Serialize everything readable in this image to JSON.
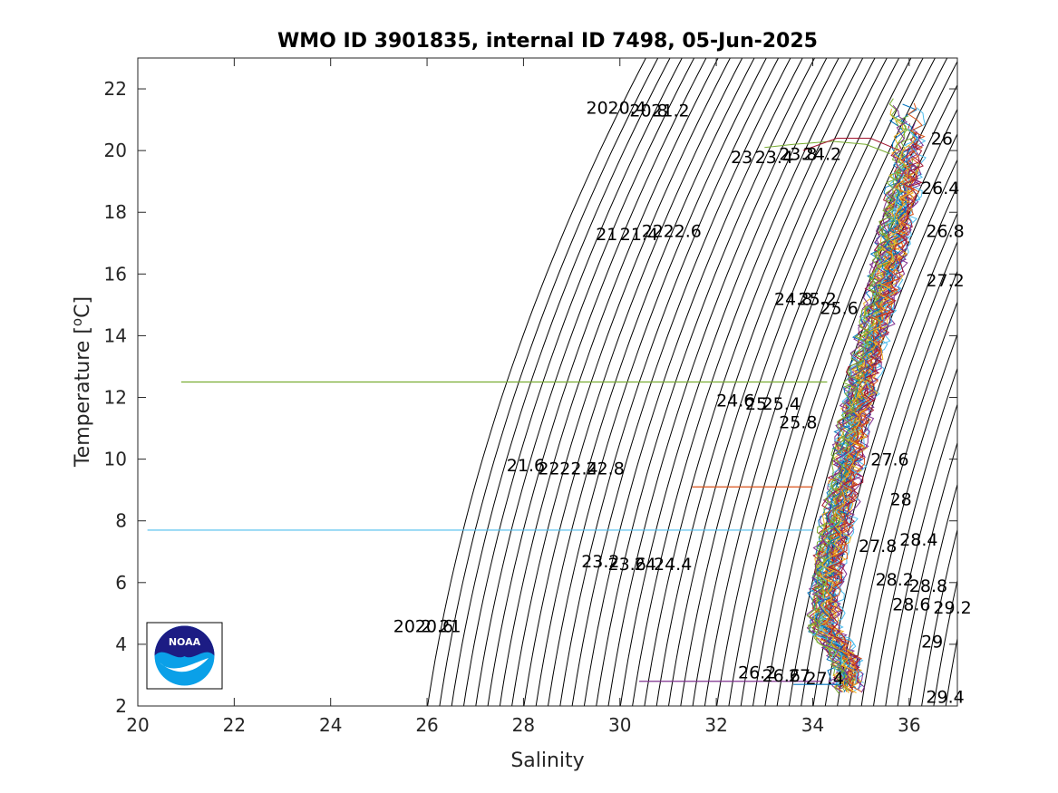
{
  "chart_data": {
    "type": "line",
    "title": "WMO ID 3901835, internal ID 7498, 05-Jun-2025",
    "xlabel": "Salinity",
    "ylabel_main": "Temperature [",
    "ylabel_sup": "o",
    "ylabel_tail": "C]",
    "xlim": [
      20,
      37
    ],
    "ylim": [
      2,
      23
    ],
    "xticks": [
      20,
      22,
      24,
      26,
      28,
      30,
      32,
      34,
      36
    ],
    "yticks": [
      2,
      4,
      6,
      8,
      10,
      12,
      14,
      16,
      18,
      20,
      22
    ],
    "grid": false,
    "legend": "none",
    "density_contours": {
      "sigma_min": 20.0,
      "sigma_max": 29.4,
      "sigma_step": 0.2,
      "color": "#000000"
    },
    "contour_labels": [
      {
        "text": "20",
        "x": 29.3,
        "y": 21.2
      },
      {
        "text": "20.4",
        "x": 29.75,
        "y": 21.2
      },
      {
        "text": "20.8",
        "x": 30.2,
        "y": 21.1
      },
      {
        "text": "21.2",
        "x": 30.65,
        "y": 21.1
      },
      {
        "text": "23",
        "x": 32.3,
        "y": 19.6
      },
      {
        "text": "23.4",
        "x": 32.8,
        "y": 19.6
      },
      {
        "text": "23.8",
        "x": 33.3,
        "y": 19.7
      },
      {
        "text": "24.2",
        "x": 33.8,
        "y": 19.7
      },
      {
        "text": "26",
        "x": 36.45,
        "y": 20.2
      },
      {
        "text": "21",
        "x": 29.5,
        "y": 17.1
      },
      {
        "text": "21.4",
        "x": 30.0,
        "y": 17.1
      },
      {
        "text": "22",
        "x": 30.45,
        "y": 17.2
      },
      {
        "text": "22.6",
        "x": 30.9,
        "y": 17.2
      },
      {
        "text": "26.4",
        "x": 36.25,
        "y": 18.6
      },
      {
        "text": "26.8",
        "x": 36.35,
        "y": 17.2
      },
      {
        "text": "24.8",
        "x": 33.2,
        "y": 15.0
      },
      {
        "text": "25.2",
        "x": 33.7,
        "y": 15.0
      },
      {
        "text": "25.6",
        "x": 34.15,
        "y": 14.7
      },
      {
        "text": "27.2",
        "x": 36.35,
        "y": 15.6
      },
      {
        "text": "24.6",
        "x": 32.0,
        "y": 11.7
      },
      {
        "text": "25",
        "x": 32.6,
        "y": 11.6
      },
      {
        "text": "25.4",
        "x": 32.95,
        "y": 11.6
      },
      {
        "text": "25.8",
        "x": 33.3,
        "y": 11.0
      },
      {
        "text": "27.6",
        "x": 35.2,
        "y": 9.8
      },
      {
        "text": "21.6",
        "x": 27.65,
        "y": 9.6
      },
      {
        "text": "22",
        "x": 28.3,
        "y": 9.5
      },
      {
        "text": "22.4",
        "x": 28.75,
        "y": 9.5
      },
      {
        "text": "22.8",
        "x": 29.3,
        "y": 9.5
      },
      {
        "text": "28",
        "x": 35.6,
        "y": 8.5
      },
      {
        "text": "27.8",
        "x": 34.95,
        "y": 7.0
      },
      {
        "text": "28.4",
        "x": 35.8,
        "y": 7.2
      },
      {
        "text": "23.2",
        "x": 29.2,
        "y": 6.5
      },
      {
        "text": "23.6",
        "x": 29.75,
        "y": 6.4
      },
      {
        "text": "24",
        "x": 30.3,
        "y": 6.4
      },
      {
        "text": "24.4",
        "x": 30.7,
        "y": 6.4
      },
      {
        "text": "28.2",
        "x": 35.3,
        "y": 5.9
      },
      {
        "text": "28.8",
        "x": 36.0,
        "y": 5.7
      },
      {
        "text": "28.6",
        "x": 35.65,
        "y": 5.1
      },
      {
        "text": "29.2",
        "x": 36.5,
        "y": 5.0
      },
      {
        "text": "20.2",
        "x": 25.3,
        "y": 4.4
      },
      {
        "text": "20.6",
        "x": 25.75,
        "y": 4.4
      },
      {
        "text": "21",
        "x": 26.25,
        "y": 4.4
      },
      {
        "text": "29",
        "x": 36.25,
        "y": 3.9
      },
      {
        "text": "26.2",
        "x": 32.45,
        "y": 2.9
      },
      {
        "text": "26.6",
        "x": 32.95,
        "y": 2.8
      },
      {
        "text": "27",
        "x": 33.5,
        "y": 2.8
      },
      {
        "text": "27.4",
        "x": 33.85,
        "y": 2.7
      },
      {
        "text": "29.4",
        "x": 36.35,
        "y": 2.1
      }
    ],
    "horizontal_segments": [
      {
        "x0": 20.9,
        "x1": 34.3,
        "y": 12.5,
        "color": "#77ac30"
      },
      {
        "x0": 20.2,
        "x1": 34.0,
        "y": 7.7,
        "color": "#4dbeee"
      },
      {
        "x0": 31.5,
        "x1": 34.0,
        "y": 9.1,
        "color": "#d95319"
      },
      {
        "x0": 30.4,
        "x1": 34.2,
        "y": 2.8,
        "color": "#7e2f8e"
      },
      {
        "x0": 33.6,
        "x1": 34.6,
        "y": 2.7,
        "color": "#0072bd"
      }
    ],
    "arc_segments": [
      {
        "points": [
          [
            33.0,
            20.1
          ],
          [
            33.6,
            20.2
          ],
          [
            34.4,
            20.3
          ],
          [
            35.1,
            20.2
          ],
          [
            35.6,
            19.9
          ]
        ],
        "color": "#77ac30"
      },
      {
        "points": [
          [
            33.8,
            20.0
          ],
          [
            34.5,
            20.4
          ],
          [
            35.2,
            20.4
          ],
          [
            35.8,
            20.0
          ]
        ],
        "color": "#a2142f"
      }
    ],
    "profile_colors": [
      "#0072bd",
      "#d95319",
      "#edb120",
      "#7e2f8e",
      "#77ac30",
      "#4dbeee",
      "#a2142f"
    ],
    "profile_count": 40,
    "profile_envelope": [
      {
        "t": 2.3,
        "s": 34.75
      },
      {
        "t": 3.5,
        "s": 34.7
      },
      {
        "t": 4.5,
        "s": 34.25
      },
      {
        "t": 6.0,
        "s": 34.3
      },
      {
        "t": 7.5,
        "s": 34.45
      },
      {
        "t": 9.0,
        "s": 34.65
      },
      {
        "t": 11.0,
        "s": 34.85
      },
      {
        "t": 13.0,
        "s": 35.1
      },
      {
        "t": 15.0,
        "s": 35.4
      },
      {
        "t": 17.0,
        "s": 35.65
      },
      {
        "t": 18.5,
        "s": 35.85
      },
      {
        "t": 19.5,
        "s": 35.95
      },
      {
        "t": 20.5,
        "s": 36.0
      },
      {
        "t": 21.8,
        "s": 35.9
      }
    ]
  }
}
